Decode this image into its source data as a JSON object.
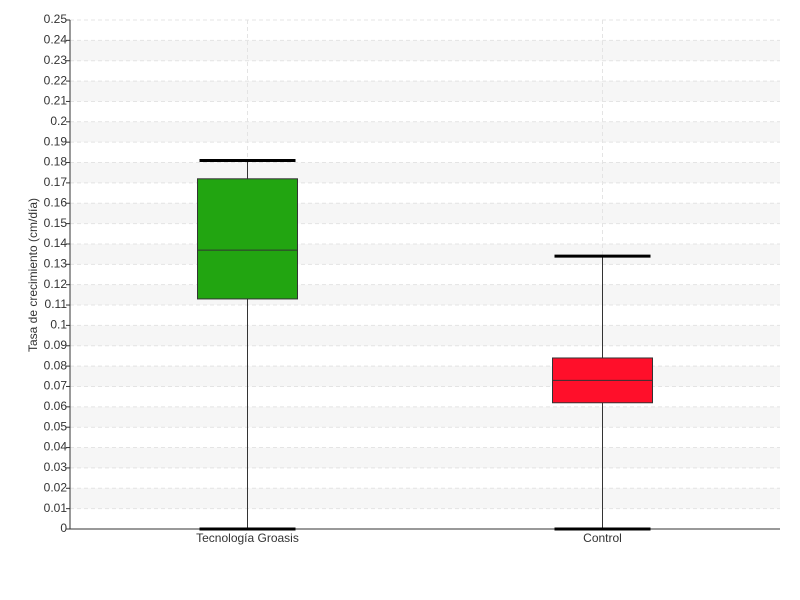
{
  "chart_data": {
    "type": "box",
    "y_label": "Tasa de crecimiento (cm/día)",
    "categories": [
      "Tecnología Groasis",
      "Control"
    ],
    "boxes": [
      {
        "min": 0,
        "q1": 0.113,
        "median": 0.137,
        "q3": 0.172,
        "max": 0.181,
        "color": "#22a511"
      },
      {
        "min": 0,
        "q1": 0.062,
        "median": 0.073,
        "q3": 0.084,
        "max": 0.134,
        "color": "#ff0f2a"
      }
    ],
    "ylim": [
      0,
      0.25
    ],
    "yticks": [
      0,
      0.01,
      0.02,
      0.03,
      0.04,
      0.05,
      0.06,
      0.07,
      0.08,
      0.09,
      0.1,
      0.11,
      0.12,
      0.13,
      0.14,
      0.15,
      0.16,
      0.17,
      0.18,
      0.19,
      0.2,
      0.21,
      0.22,
      0.23,
      0.24,
      0.25
    ],
    "grid": true
  }
}
